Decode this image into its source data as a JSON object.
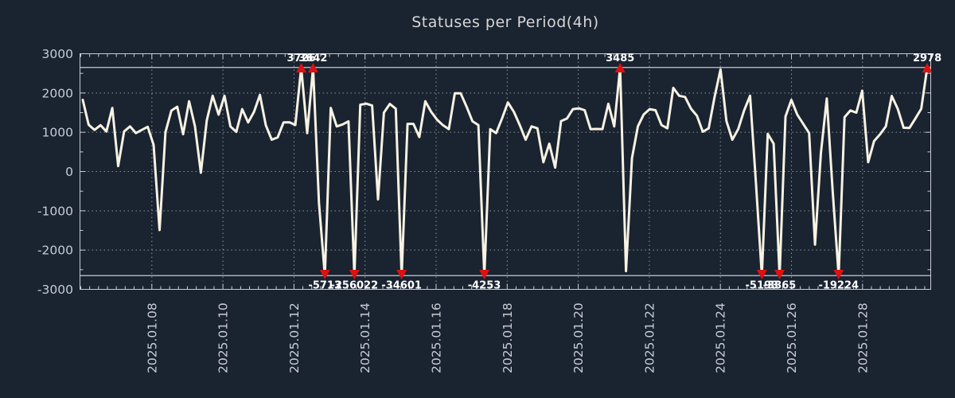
{
  "title": "Statuses per Period(4h)",
  "colors": {
    "background": "#1a2330",
    "line": "#f7f2e2",
    "marker": "#dd1111",
    "grid": "#8d94a0",
    "axis": "#c7ccd6",
    "annotation_text": "#ffffff",
    "title_text": "#d6d6d6"
  },
  "chart_data": {
    "type": "line",
    "title": "Statuses per Period(4h)",
    "interval": "4h",
    "xlabel": "",
    "ylabel": "",
    "ylim": [
      -3000,
      3000
    ],
    "y_ticks": [
      3000,
      2000,
      1000,
      0,
      -1000,
      -2000,
      -3000
    ],
    "x_tick_labels": [
      "2025.01.08",
      "2025.01.10",
      "2025.01.12",
      "2025.01.14",
      "2025.01.16",
      "2025.01.18",
      "2025.01.20",
      "2025.01.22",
      "2025.01.24",
      "2025.01.26",
      "2025.01.28"
    ],
    "grid": true,
    "legend": "none",
    "clip_threshold": 2650,
    "annotated_extremes": [
      3726,
      3642,
      -5713,
      -256022,
      -34601,
      -4253,
      3485,
      -5193,
      -3365,
      -19224,
      2978
    ],
    "series": [
      {
        "name": "statuses",
        "values": [
          1825,
          1190,
          1060,
          1180,
          1020,
          1620,
          140,
          1020,
          1150,
          980,
          1060,
          1140,
          680,
          -1490,
          1000,
          1550,
          1650,
          950,
          1790,
          1150,
          -30,
          1300,
          1930,
          1450,
          1930,
          1150,
          1010,
          1590,
          1250,
          1520,
          1950,
          1180,
          810,
          870,
          1250,
          1255,
          1185,
          3726,
          980,
          3642,
          -800,
          -5713,
          1620,
          1150,
          1200,
          1280,
          -256022,
          1700,
          1730,
          1680,
          -710,
          1500,
          1720,
          1600,
          -34601,
          1215,
          1215,
          880,
          1790,
          1520,
          1320,
          1180,
          1080,
          1995,
          1990,
          1650,
          1280,
          1183,
          -4253,
          1080,
          980,
          1350,
          1760,
          1520,
          1183,
          811,
          1150,
          1100,
          237,
          710,
          100,
          1285,
          1350,
          1590,
          1610,
          1560,
          1080,
          1085,
          1080,
          1725,
          1150,
          3485,
          -2535,
          340,
          1150,
          1455,
          1590,
          1560,
          1183,
          1100,
          2130,
          1930,
          1900,
          1600,
          1420,
          1014,
          1100,
          1900,
          2600,
          1285,
          810,
          1080,
          1555,
          1930,
          -300,
          -5193,
          960,
          710,
          -3365,
          1400,
          1825,
          1450,
          1217,
          980,
          -1860,
          470,
          1860,
          -500,
          -19224,
          1385,
          1555,
          1500,
          2060,
          237,
          775,
          945,
          1150,
          1925,
          1600,
          1115,
          1110,
          1350,
          1600,
          2978
        ]
      }
    ]
  }
}
